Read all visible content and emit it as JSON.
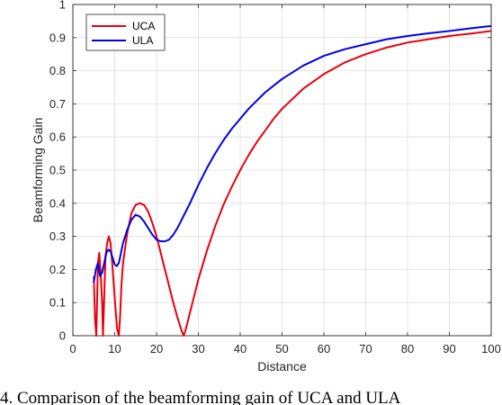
{
  "chart_data": {
    "type": "line",
    "xlabel": "Distance",
    "ylabel": "Beamforming Gain",
    "xlim": [
      0,
      100
    ],
    "ylim": [
      0,
      1
    ],
    "xticks": [
      "0",
      "10",
      "20",
      "30",
      "40",
      "50",
      "60",
      "70",
      "80",
      "90",
      "100"
    ],
    "yticks": [
      "0",
      "0.1",
      "0.2",
      "0.3",
      "0.4",
      "0.5",
      "0.6",
      "0.7",
      "0.8",
      "0.9",
      "1"
    ],
    "grid": true,
    "legend_position": "top-left",
    "series": [
      {
        "name": "UCA",
        "color": "#e8000b",
        "x": [
          5,
          5.3,
          5.6,
          6,
          6.3,
          6.6,
          7,
          7.2,
          7.5,
          7.8,
          8.2,
          8.6,
          9,
          9.4,
          9.8,
          10.2,
          10.6,
          11,
          11.3,
          11.6,
          12,
          13,
          14,
          15,
          16,
          17,
          18,
          19,
          20,
          21,
          22,
          23,
          24,
          25,
          26,
          26.5,
          27,
          28,
          29,
          30,
          32,
          34,
          36,
          38,
          40,
          42,
          44,
          46,
          48,
          50,
          55,
          60,
          65,
          70,
          75,
          80,
          85,
          90,
          95,
          100
        ],
        "y": [
          0.18,
          0.05,
          0.0,
          0.22,
          0.25,
          0.2,
          0.1,
          0.0,
          0.12,
          0.24,
          0.28,
          0.3,
          0.28,
          0.22,
          0.15,
          0.08,
          0.02,
          0.0,
          0.06,
          0.15,
          0.22,
          0.31,
          0.37,
          0.395,
          0.4,
          0.395,
          0.375,
          0.34,
          0.3,
          0.25,
          0.2,
          0.15,
          0.1,
          0.055,
          0.015,
          0.0,
          0.02,
          0.07,
          0.12,
          0.17,
          0.255,
          0.33,
          0.395,
          0.45,
          0.5,
          0.545,
          0.585,
          0.62,
          0.655,
          0.685,
          0.745,
          0.79,
          0.825,
          0.85,
          0.87,
          0.885,
          0.895,
          0.905,
          0.912,
          0.92
        ]
      },
      {
        "name": "ULA",
        "color": "#0000e8",
        "x": [
          5,
          5.5,
          6,
          6.5,
          7,
          7.5,
          8,
          8.5,
          9,
          9.5,
          10,
          10.5,
          11,
          11.5,
          12,
          13,
          14,
          15,
          16,
          17,
          18,
          19,
          20,
          21,
          22,
          23,
          24,
          25,
          26,
          27,
          28,
          30,
          32,
          34,
          36,
          38,
          40,
          42,
          44,
          46,
          48,
          50,
          55,
          60,
          65,
          70,
          75,
          80,
          85,
          90,
          95,
          100
        ],
        "y": [
          0.16,
          0.2,
          0.22,
          0.18,
          0.19,
          0.22,
          0.25,
          0.26,
          0.255,
          0.235,
          0.215,
          0.21,
          0.22,
          0.25,
          0.28,
          0.32,
          0.35,
          0.365,
          0.36,
          0.345,
          0.325,
          0.305,
          0.29,
          0.285,
          0.285,
          0.29,
          0.305,
          0.325,
          0.35,
          0.375,
          0.4,
          0.455,
          0.505,
          0.55,
          0.59,
          0.625,
          0.655,
          0.685,
          0.71,
          0.735,
          0.755,
          0.775,
          0.815,
          0.845,
          0.865,
          0.88,
          0.895,
          0.905,
          0.913,
          0.92,
          0.928,
          0.935
        ]
      }
    ]
  },
  "caption": "4.   Comparison of the beamforming gain of UCA and ULA"
}
